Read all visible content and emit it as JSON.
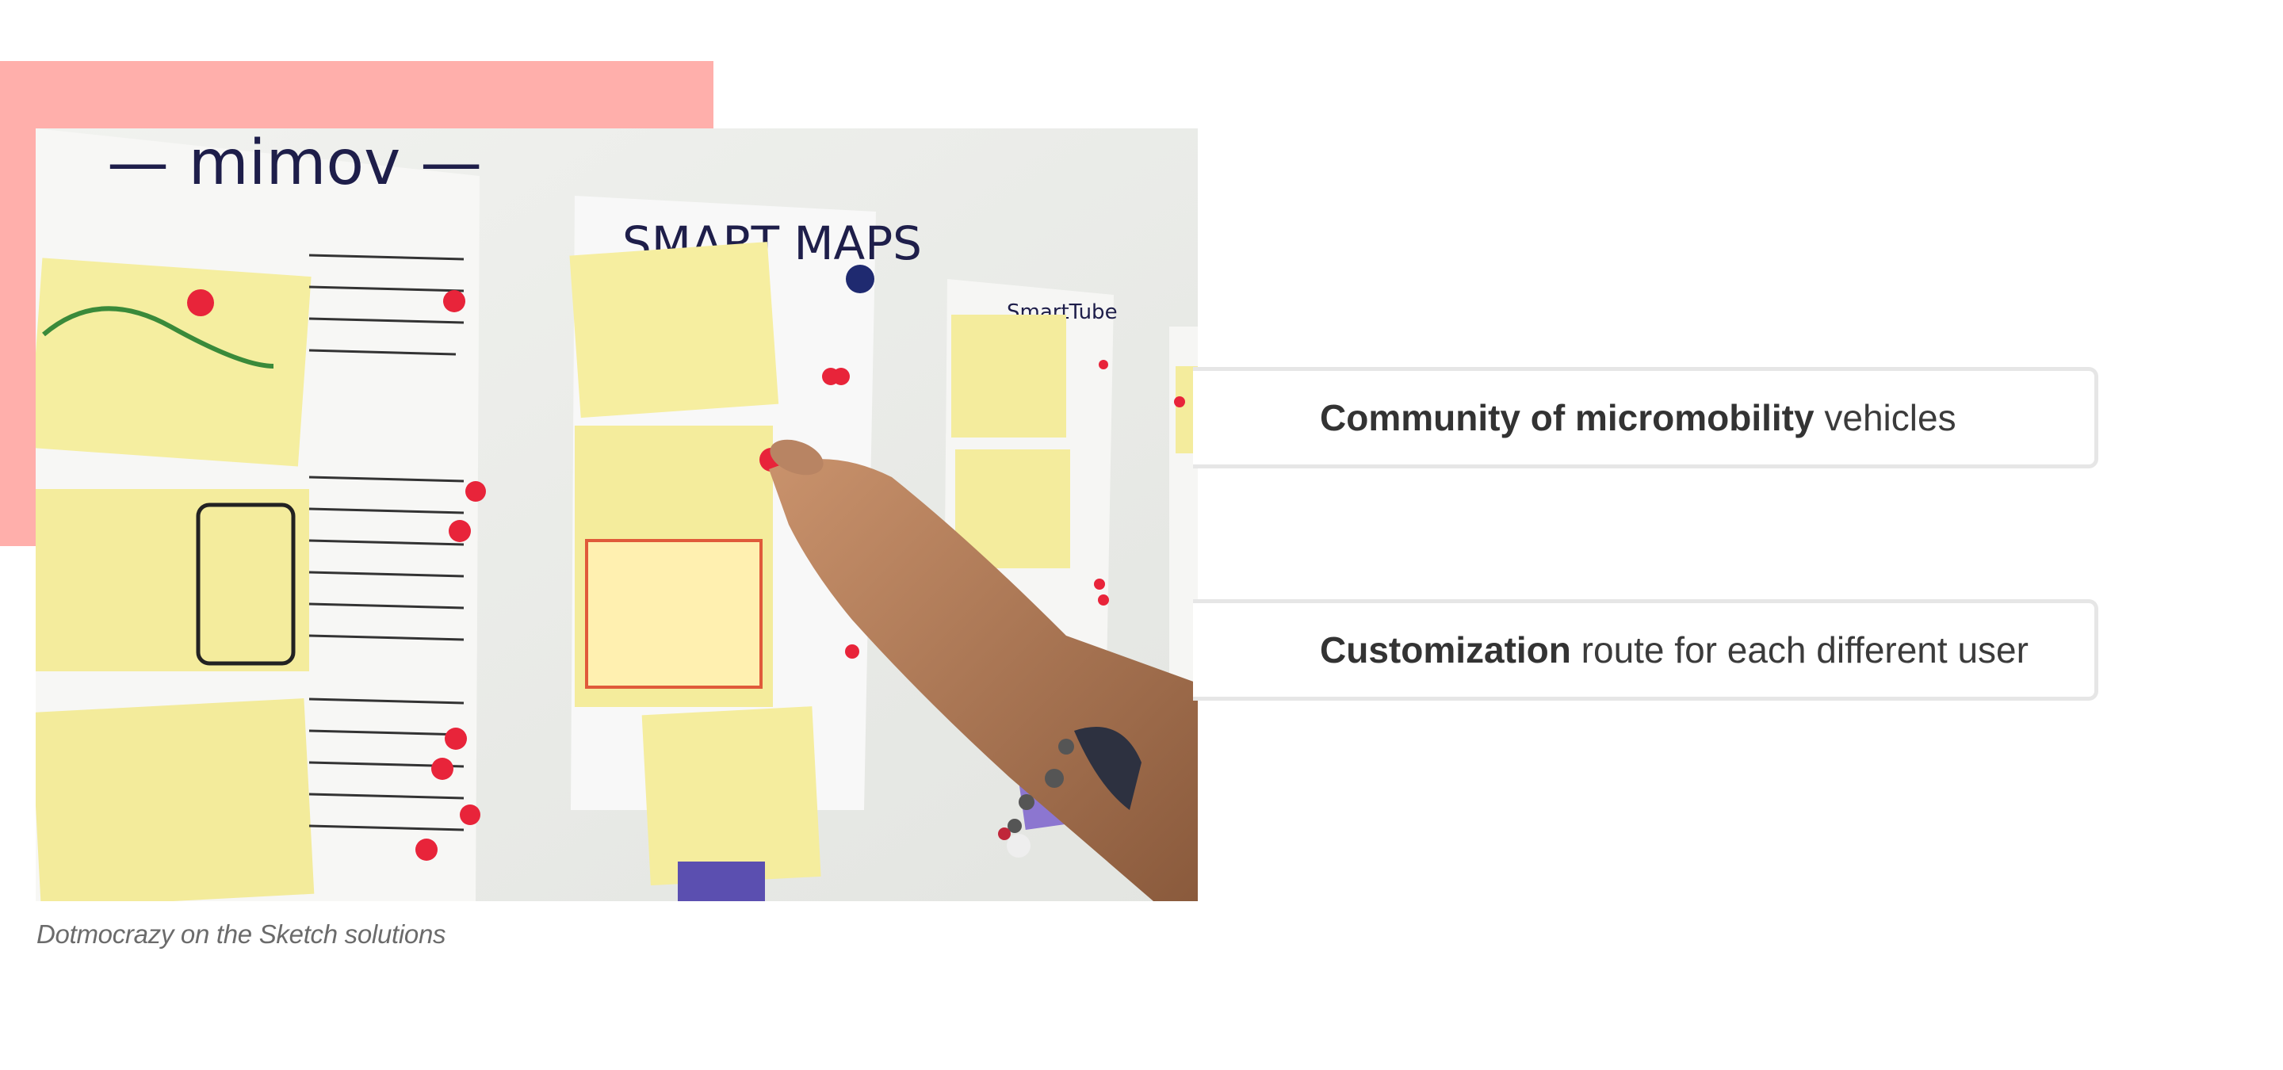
{
  "photo": {
    "alt": "Hand pointing at sticky note sketches on a wall",
    "poster_1_title": "— mimov —",
    "poster_2_title": "SMART MAPS",
    "poster_3_title": "SmartTube"
  },
  "caption": "Dotmocrazy on the Sketch solutions",
  "callouts": [
    {
      "bold": "Community of micromobility",
      "rest": " vehicles"
    },
    {
      "bold": "Customization",
      "rest": " route for each different user"
    }
  ],
  "colors": {
    "accent_block": "#ffafab",
    "callout_border": "#e6e6e6",
    "text": "#3b3b3b"
  }
}
